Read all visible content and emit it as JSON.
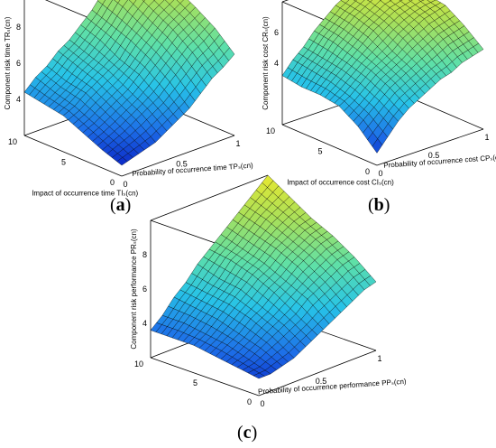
{
  "panels": [
    {
      "label_open": "(",
      "label_letter": "a",
      "label_close": ")",
      "xlabel": "Probability of occurrence time TPₛ(cn)",
      "ylabel": "Impact of occurrence time TIₛ(cn)",
      "zlabel": "Component risk time TRₛ(cn)",
      "x_ticks": [
        "0",
        "0.5",
        "1"
      ],
      "y_ticks": [
        "0",
        "5",
        "10"
      ],
      "z_ticks": [
        "4",
        "6",
        "8"
      ]
    },
    {
      "label_open": "(",
      "label_letter": "b",
      "label_close": ")",
      "xlabel": "Probability of occurrence cost CPₛ(cn)",
      "ylabel": "Impact of occurrence cost CIₛ(cn)",
      "zlabel": "Component risk cost CRₛ(cn)",
      "x_ticks": [
        "0",
        "0.5",
        "1"
      ],
      "y_ticks": [
        "0",
        "5",
        "10"
      ],
      "z_ticks": [
        "4",
        "6"
      ]
    },
    {
      "label_open": "(",
      "label_letter": "c",
      "label_close": ")",
      "xlabel": "Probability of occurrence performance PPₛ(cn)",
      "ylabel": "",
      "zlabel": "Component risk performance PRₛ(cn)",
      "x_ticks": [
        "0",
        "0.5",
        "1"
      ],
      "y_ticks": [
        "0",
        "5",
        "10"
      ],
      "z_ticks": [
        "4",
        "6",
        "8"
      ]
    }
  ],
  "chart_data": [
    {
      "type": "surface",
      "x_range": [
        0,
        1
      ],
      "y_range": [
        0,
        10
      ],
      "z_range": [
        2,
        10
      ],
      "colormap": [
        "#0000b4",
        "#1d6ee8",
        "#27c3e8",
        "#5ee0a8",
        "#a8e05a",
        "#e8e830"
      ],
      "surface": [
        [
          2.6,
          2.8,
          3.0,
          3.2,
          3.6,
          4.0,
          4.4,
          5.0,
          5.6,
          6.0,
          6.5
        ],
        [
          3.0,
          3.3,
          3.6,
          4.0,
          4.4,
          4.8,
          5.4,
          6.0,
          6.6,
          7.0,
          7.5
        ],
        [
          3.5,
          3.8,
          4.2,
          4.6,
          5.0,
          5.6,
          6.2,
          6.8,
          7.4,
          7.8,
          8.2
        ],
        [
          4.0,
          4.3,
          4.8,
          5.2,
          5.6,
          6.0,
          6.8,
          7.4,
          8.0,
          8.4,
          8.8
        ],
        [
          4.2,
          4.6,
          5.0,
          5.6,
          6.0,
          6.6,
          7.2,
          8.0,
          8.6,
          9.0,
          9.4
        ],
        [
          4.4,
          5.0,
          5.4,
          6.0,
          6.4,
          7.0,
          7.6,
          8.4,
          9.0,
          9.4,
          9.8
        ]
      ]
    },
    {
      "type": "surface",
      "x_range": [
        0,
        1
      ],
      "y_range": [
        0,
        10
      ],
      "z_range": [
        0,
        8
      ],
      "colormap": [
        "#0000b4",
        "#1d6ee8",
        "#27c3e8",
        "#5ee0a8",
        "#a8e05a",
        "#e8e830"
      ],
      "surface": [
        [
          0.8,
          1.6,
          2.4,
          3.0,
          3.4,
          3.8,
          4.2,
          4.4,
          4.8,
          5.0,
          5.2
        ],
        [
          2.0,
          2.6,
          3.2,
          3.8,
          4.2,
          4.6,
          5.0,
          5.4,
          5.8,
          6.0,
          6.2
        ],
        [
          2.8,
          3.2,
          3.8,
          4.4,
          4.8,
          5.2,
          5.8,
          6.2,
          6.6,
          6.8,
          7.0
        ],
        [
          3.0,
          3.6,
          4.2,
          4.8,
          5.4,
          6.0,
          6.4,
          6.8,
          7.0,
          7.2,
          7.2
        ],
        [
          3.0,
          3.8,
          4.4,
          5.2,
          5.8,
          6.4,
          6.8,
          7.2,
          7.4,
          7.4,
          7.4
        ],
        [
          3.2,
          4.0,
          4.6,
          5.4,
          6.0,
          6.6,
          7.0,
          7.4,
          7.6,
          7.6,
          7.6
        ]
      ]
    },
    {
      "type": "surface",
      "x_range": [
        0,
        1
      ],
      "y_range": [
        0,
        10
      ],
      "z_range": [
        2,
        10
      ],
      "colormap": [
        "#0000b4",
        "#1d6ee8",
        "#27c3e8",
        "#5ee0a8",
        "#a8e05a",
        "#e8e830"
      ],
      "surface": [
        [
          3.0,
          3.0,
          3.2,
          3.4,
          3.8,
          4.2,
          4.6,
          5.0,
          5.4,
          5.8,
          6.0
        ],
        [
          3.2,
          3.4,
          3.8,
          4.2,
          4.6,
          5.0,
          5.6,
          6.0,
          6.4,
          6.8,
          7.0
        ],
        [
          3.4,
          3.8,
          4.2,
          4.8,
          5.2,
          5.8,
          6.2,
          6.8,
          7.2,
          7.6,
          7.8
        ],
        [
          3.6,
          4.0,
          4.6,
          5.2,
          5.8,
          6.4,
          6.8,
          7.4,
          7.8,
          8.2,
          8.4
        ],
        [
          3.6,
          4.2,
          4.8,
          5.4,
          6.0,
          6.8,
          7.2,
          7.8,
          8.4,
          8.8,
          9.2
        ],
        [
          3.6,
          4.2,
          5.0,
          5.6,
          6.4,
          7.0,
          7.6,
          8.2,
          8.8,
          9.4,
          10.0
        ]
      ]
    }
  ]
}
